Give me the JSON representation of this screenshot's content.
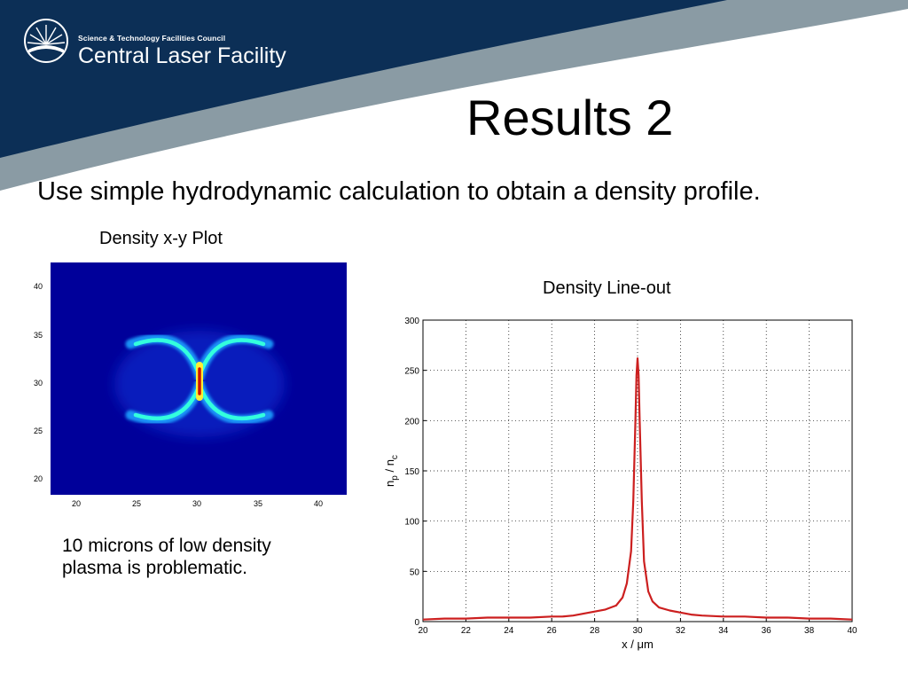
{
  "slide": {
    "title": "Results 2",
    "subtitle": "Use simple hydrodynamic calculation to obtain a density profile.",
    "note": "10 microns of low density plasma is problematic."
  },
  "header": {
    "org_small": "Science & Technology Facilities Council",
    "org_name": "Central Laser Facility",
    "colors": {
      "banner": "#0c2f56",
      "stripe": "#8a9ba4"
    },
    "icon": "sunburst-logo-icon"
  },
  "xy_plot": {
    "caption": "Density x-y Plot",
    "x_ticks": [
      "20",
      "25",
      "30",
      "35",
      "40"
    ],
    "y_ticks": [
      "40",
      "35",
      "30",
      "25",
      "20"
    ],
    "colormap": "jet"
  },
  "chart_data": {
    "type": "line",
    "title": "Density Line-out",
    "xlabel": "x / μm",
    "ylabel_main": "n",
    "ylabel_sub1": "p",
    "ylabel_sep": " / n",
    "ylabel_sub2": "c",
    "xlim": [
      20,
      40
    ],
    "ylim": [
      0,
      300
    ],
    "x_ticks": [
      20,
      22,
      24,
      26,
      28,
      30,
      32,
      34,
      36,
      38,
      40
    ],
    "y_ticks": [
      0,
      50,
      100,
      150,
      200,
      250,
      300
    ],
    "grid": true,
    "series": [
      {
        "color": "#cc1f1f",
        "x": [
          20,
          21,
          22,
          23,
          24,
          25,
          26,
          26.5,
          27,
          27.5,
          28,
          28.5,
          29,
          29.3,
          29.5,
          29.7,
          29.8,
          29.9,
          29.95,
          30,
          30.05,
          30.1,
          30.2,
          30.3,
          30.5,
          30.7,
          31,
          31.5,
          32,
          32.5,
          33,
          34,
          35,
          36,
          37,
          38,
          39,
          40
        ],
        "y": [
          2,
          3,
          3,
          4,
          4,
          4,
          5,
          5,
          6,
          8,
          10,
          12,
          16,
          24,
          38,
          70,
          120,
          200,
          245,
          262,
          245,
          200,
          120,
          60,
          30,
          20,
          14,
          11,
          9,
          7,
          6,
          5,
          5,
          4,
          4,
          3,
          3,
          2
        ]
      }
    ]
  }
}
